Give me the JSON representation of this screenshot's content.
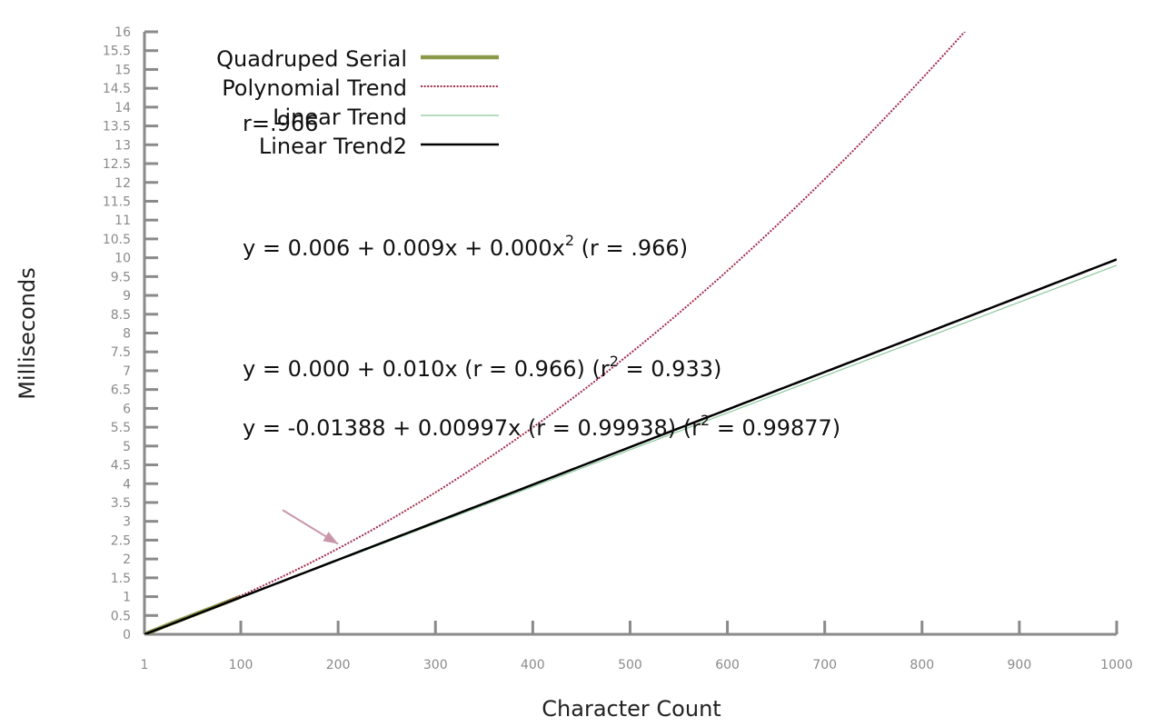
{
  "chart_data": {
    "type": "line",
    "xlabel": "Character Count",
    "ylabel": "Milliseconds",
    "xlim": [
      1,
      1000
    ],
    "ylim": [
      0,
      16
    ],
    "x_ticks": [
      "1",
      "100",
      "200",
      "300",
      "400",
      "500",
      "600",
      "700",
      "800",
      "900",
      "1000"
    ],
    "y_ticks": [
      "0",
      "0.5",
      "1",
      "1.5",
      "2",
      "2.5",
      "3",
      "3.5",
      "4",
      "4.5",
      "5",
      "5.5",
      "6",
      "6.5",
      "7",
      "7.5",
      "8",
      "8.5",
      "9",
      "9.5",
      "10",
      "10.5",
      "11",
      "11.5",
      "12",
      "12.5",
      "13",
      "13.5",
      "14",
      "14.5",
      "15",
      "15.5",
      "16"
    ],
    "grid": false,
    "legend_position": "top-left",
    "series": [
      {
        "name": "Quadruped Serial",
        "color": "#8a9a4a",
        "style": "solid-thick",
        "points": [
          [
            1,
            0.0
          ],
          [
            25,
            0.25
          ],
          [
            50,
            0.5
          ],
          [
            75,
            0.75
          ],
          [
            100,
            1.0
          ]
        ]
      },
      {
        "name": "Polynomial Trend",
        "color": "#9e2a4a",
        "style": "dotted",
        "coefficients": [
          0.006,
          0.009,
          1.18e-05
        ]
      },
      {
        "name": "Linear Trend",
        "color": "#8cc79a",
        "style": "thin",
        "coefficients": [
          0.0,
          0.0098
        ]
      },
      {
        "name": "Linear Trend2",
        "color": "#000000",
        "style": "solid",
        "coefficients": [
          -0.01388,
          0.00997
        ]
      }
    ],
    "annotations": {
      "legend_overlap": "r=.966",
      "poly_eq": {
        "main": "y = 0.006 + 0.009x + 0.000x",
        "sup": "2",
        "tail": " (r = .966)"
      },
      "lin_eq": {
        "main": "y = 0.000 + 0.010x (r = 0.966) (r",
        "sup": "2",
        "tail": " = 0.933)"
      },
      "lin2_eq": {
        "main": "y = -0.01388 + 0.00997x (r = 0.99938) (r",
        "sup": "2",
        "tail": " = 0.99877)"
      },
      "arrow": {
        "from": [
          143,
          3.3
        ],
        "to": [
          200,
          2.4
        ],
        "color": "#c896a8"
      }
    }
  }
}
